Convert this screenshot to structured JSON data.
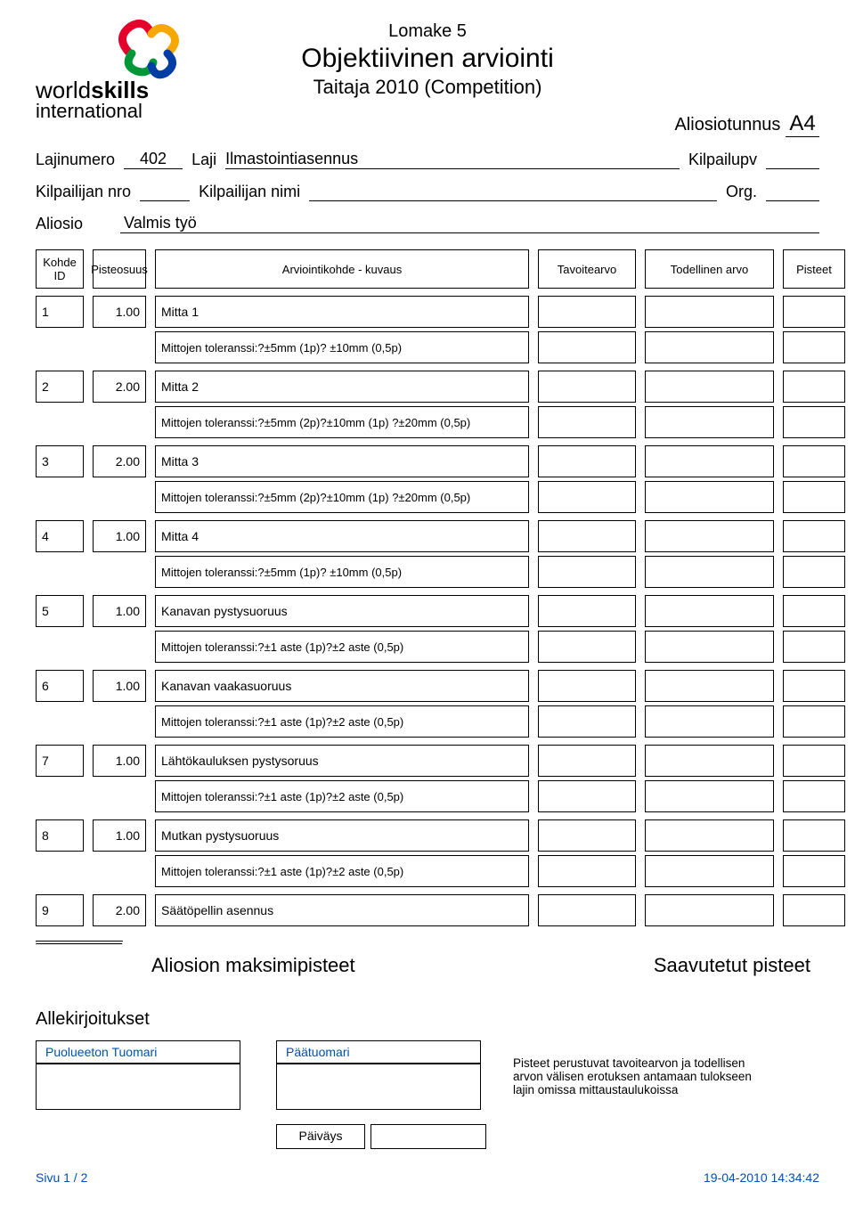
{
  "form_label": "Lomake 5",
  "title": "Objektiivinen arviointi",
  "subtitle": "Taitaja 2010 (Competition)",
  "aliosio_tunnus_label": "Aliosiotunnus",
  "aliosio_tunnus": "A4",
  "meta": {
    "lajinumero_label": "Lajinumero",
    "lajinumero": "402",
    "laji_label": "Laji",
    "laji": "Ilmastointiasennus",
    "kilpailupv_label": "Kilpailupv",
    "kilpailijan_nro_label": "Kilpailijan nro",
    "kilpailijan_nimi_label": "Kilpailijan nimi",
    "org_label": "Org.",
    "aliosio_label": "Aliosio",
    "aliosio": "Valmis työ"
  },
  "columns": {
    "kohde_id": "Kohde ID",
    "pisteosuus": "Pisteosuus",
    "kuvaus": "Arviointikohde - kuvaus",
    "tavoitearvo": "Tavoitearvo",
    "todellinen": "Todellinen arvo",
    "pisteet": "Pisteet"
  },
  "rows": [
    {
      "id": "1",
      "pts": "1.00",
      "desc": "Mitta 1",
      "sub": "Mittojen toleranssi:?±5mm (1p)? ±10mm (0,5p)"
    },
    {
      "id": "2",
      "pts": "2.00",
      "desc": "Mitta 2",
      "sub": "Mittojen toleranssi:?±5mm (2p)?±10mm (1p)  ?±20mm (0,5p)"
    },
    {
      "id": "3",
      "pts": "2.00",
      "desc": "Mitta 3",
      "sub": "Mittojen toleranssi:?±5mm (2p)?±10mm (1p)  ?±20mm (0,5p)"
    },
    {
      "id": "4",
      "pts": "1.00",
      "desc": "Mitta 4",
      "sub": "Mittojen toleranssi:?±5mm (1p)? ±10mm (0,5p)"
    },
    {
      "id": "5",
      "pts": "1.00",
      "desc": "Kanavan pystysuoruus",
      "sub": "Mittojen toleranssi:?±1 aste (1p)?±2 aste (0,5p)"
    },
    {
      "id": "6",
      "pts": "1.00",
      "desc": "Kanavan vaakasuoruus",
      "sub": "Mittojen toleranssi:?±1 aste (1p)?±2 aste (0,5p)"
    },
    {
      "id": "7",
      "pts": "1.00",
      "desc": "Lähtökauluksen pystysoruus",
      "sub": "Mittojen toleranssi:?±1 aste (1p)?±2 aste (0,5p)"
    },
    {
      "id": "8",
      "pts": "1.00",
      "desc": "Mutkan pystysuoruus",
      "sub": "Mittojen toleranssi:?±1 aste (1p)?±2 aste (0,5p)"
    },
    {
      "id": "9",
      "pts": "2.00",
      "desc": "Säätöpellin asennus",
      "sub": ""
    }
  ],
  "totals": {
    "max_label": "Aliosion maksimipisteet",
    "achieved_label": "Saavutetut pisteet"
  },
  "signatures": {
    "title": "Allekirjoitukset",
    "neutral_judge": "Puolueeton Tuomari",
    "head_judge": "Päätuomari",
    "note": "Pisteet perustuvat tavoitearvon ja todellisen arvon välisen erotuksen antamaan tulokseen lajin omissa mittaustaulukoissa",
    "date_label": "Päiväys"
  },
  "footer": {
    "page": "Sivu 1 / 2",
    "timestamp": "19-04-2010  14:34:42"
  },
  "logo_text": {
    "world": "world",
    "skills": "skills",
    "intl": "international"
  },
  "colors": {
    "accent": "#0050b3"
  }
}
